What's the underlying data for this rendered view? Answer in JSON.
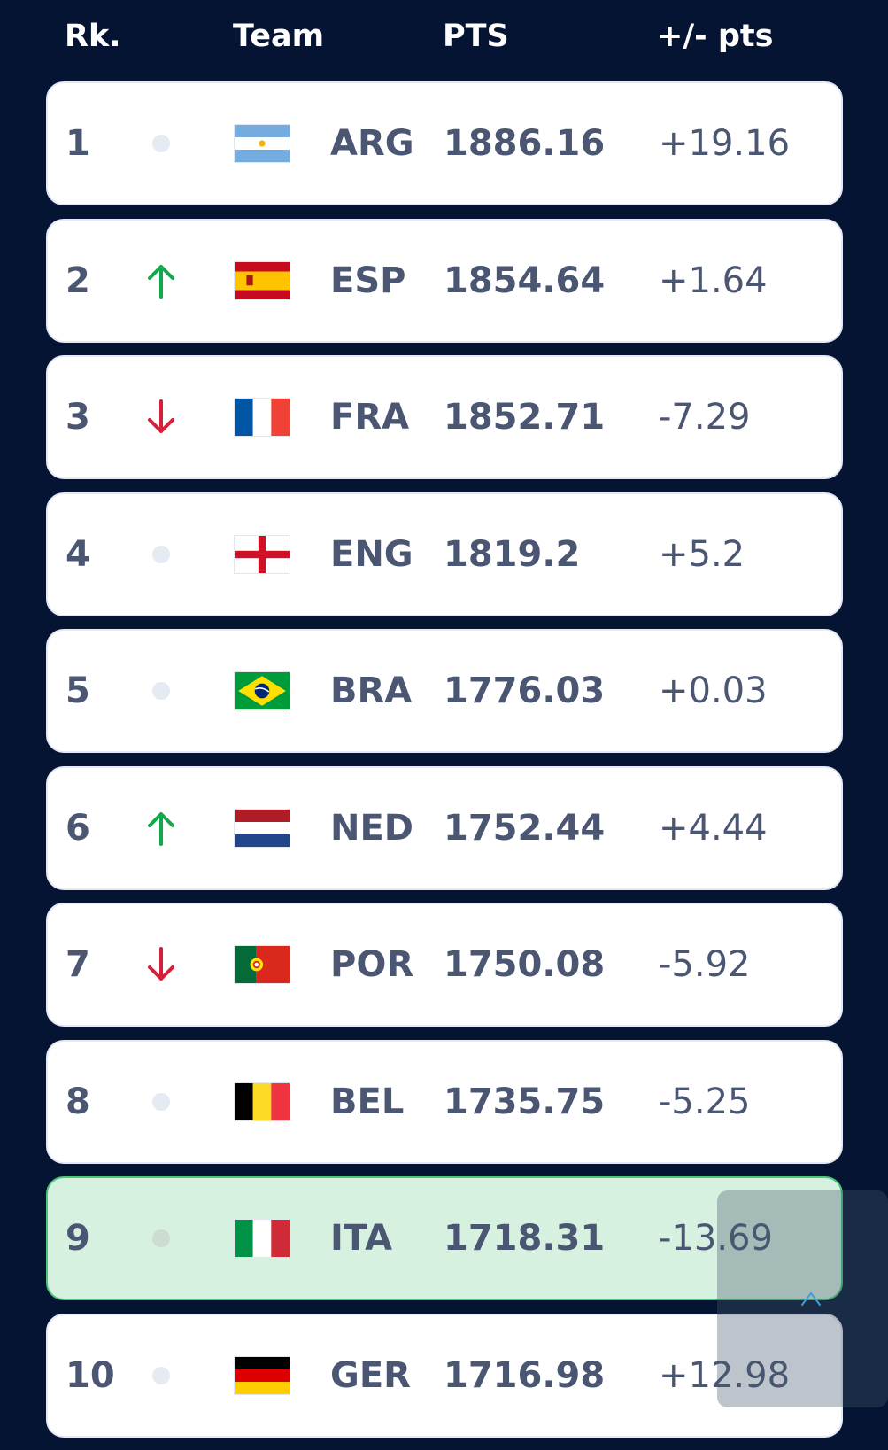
{
  "header": {
    "rank": "Rk.",
    "team": "Team",
    "pts": "PTS",
    "diff": "+/- pts"
  },
  "rows": [
    {
      "rank": "1",
      "trend": "none",
      "flag": "argentina-flag-icon",
      "team": "ARG",
      "pts": "1886.16",
      "diff": "+19.16"
    },
    {
      "rank": "2",
      "trend": "up",
      "flag": "spain-flag-icon",
      "team": "ESP",
      "pts": "1854.64",
      "diff": "+1.64"
    },
    {
      "rank": "3",
      "trend": "down",
      "flag": "france-flag-icon",
      "team": "FRA",
      "pts": "1852.71",
      "diff": "-7.29"
    },
    {
      "rank": "4",
      "trend": "none",
      "flag": "england-flag-icon",
      "team": "ENG",
      "pts": "1819.2",
      "diff": "+5.2"
    },
    {
      "rank": "5",
      "trend": "none",
      "flag": "brazil-flag-icon",
      "team": "BRA",
      "pts": "1776.03",
      "diff": "+0.03"
    },
    {
      "rank": "6",
      "trend": "up",
      "flag": "netherlands-flag-icon",
      "team": "NED",
      "pts": "1752.44",
      "diff": "+4.44"
    },
    {
      "rank": "7",
      "trend": "down",
      "flag": "portugal-flag-icon",
      "team": "POR",
      "pts": "1750.08",
      "diff": "-5.92"
    },
    {
      "rank": "8",
      "trend": "none",
      "flag": "belgium-flag-icon",
      "team": "BEL",
      "pts": "1735.75",
      "diff": "-5.25"
    },
    {
      "rank": "9",
      "trend": "none",
      "flag": "italy-flag-icon",
      "team": "ITA",
      "pts": "1718.31",
      "diff": "-13.69",
      "highlighted": true
    },
    {
      "rank": "10",
      "trend": "none",
      "flag": "germany-flag-icon",
      "team": "GER",
      "pts": "1716.98",
      "diff": "+12.98"
    }
  ],
  "colors": {
    "background": "#041432",
    "row_text": "#4a5672",
    "trend_up": "#14a84c",
    "trend_down": "#d6203a",
    "highlight_bg": "#d7f1e0",
    "highlight_border": "#4cc877"
  },
  "scroll_top_icon": "chevron-up-icon"
}
